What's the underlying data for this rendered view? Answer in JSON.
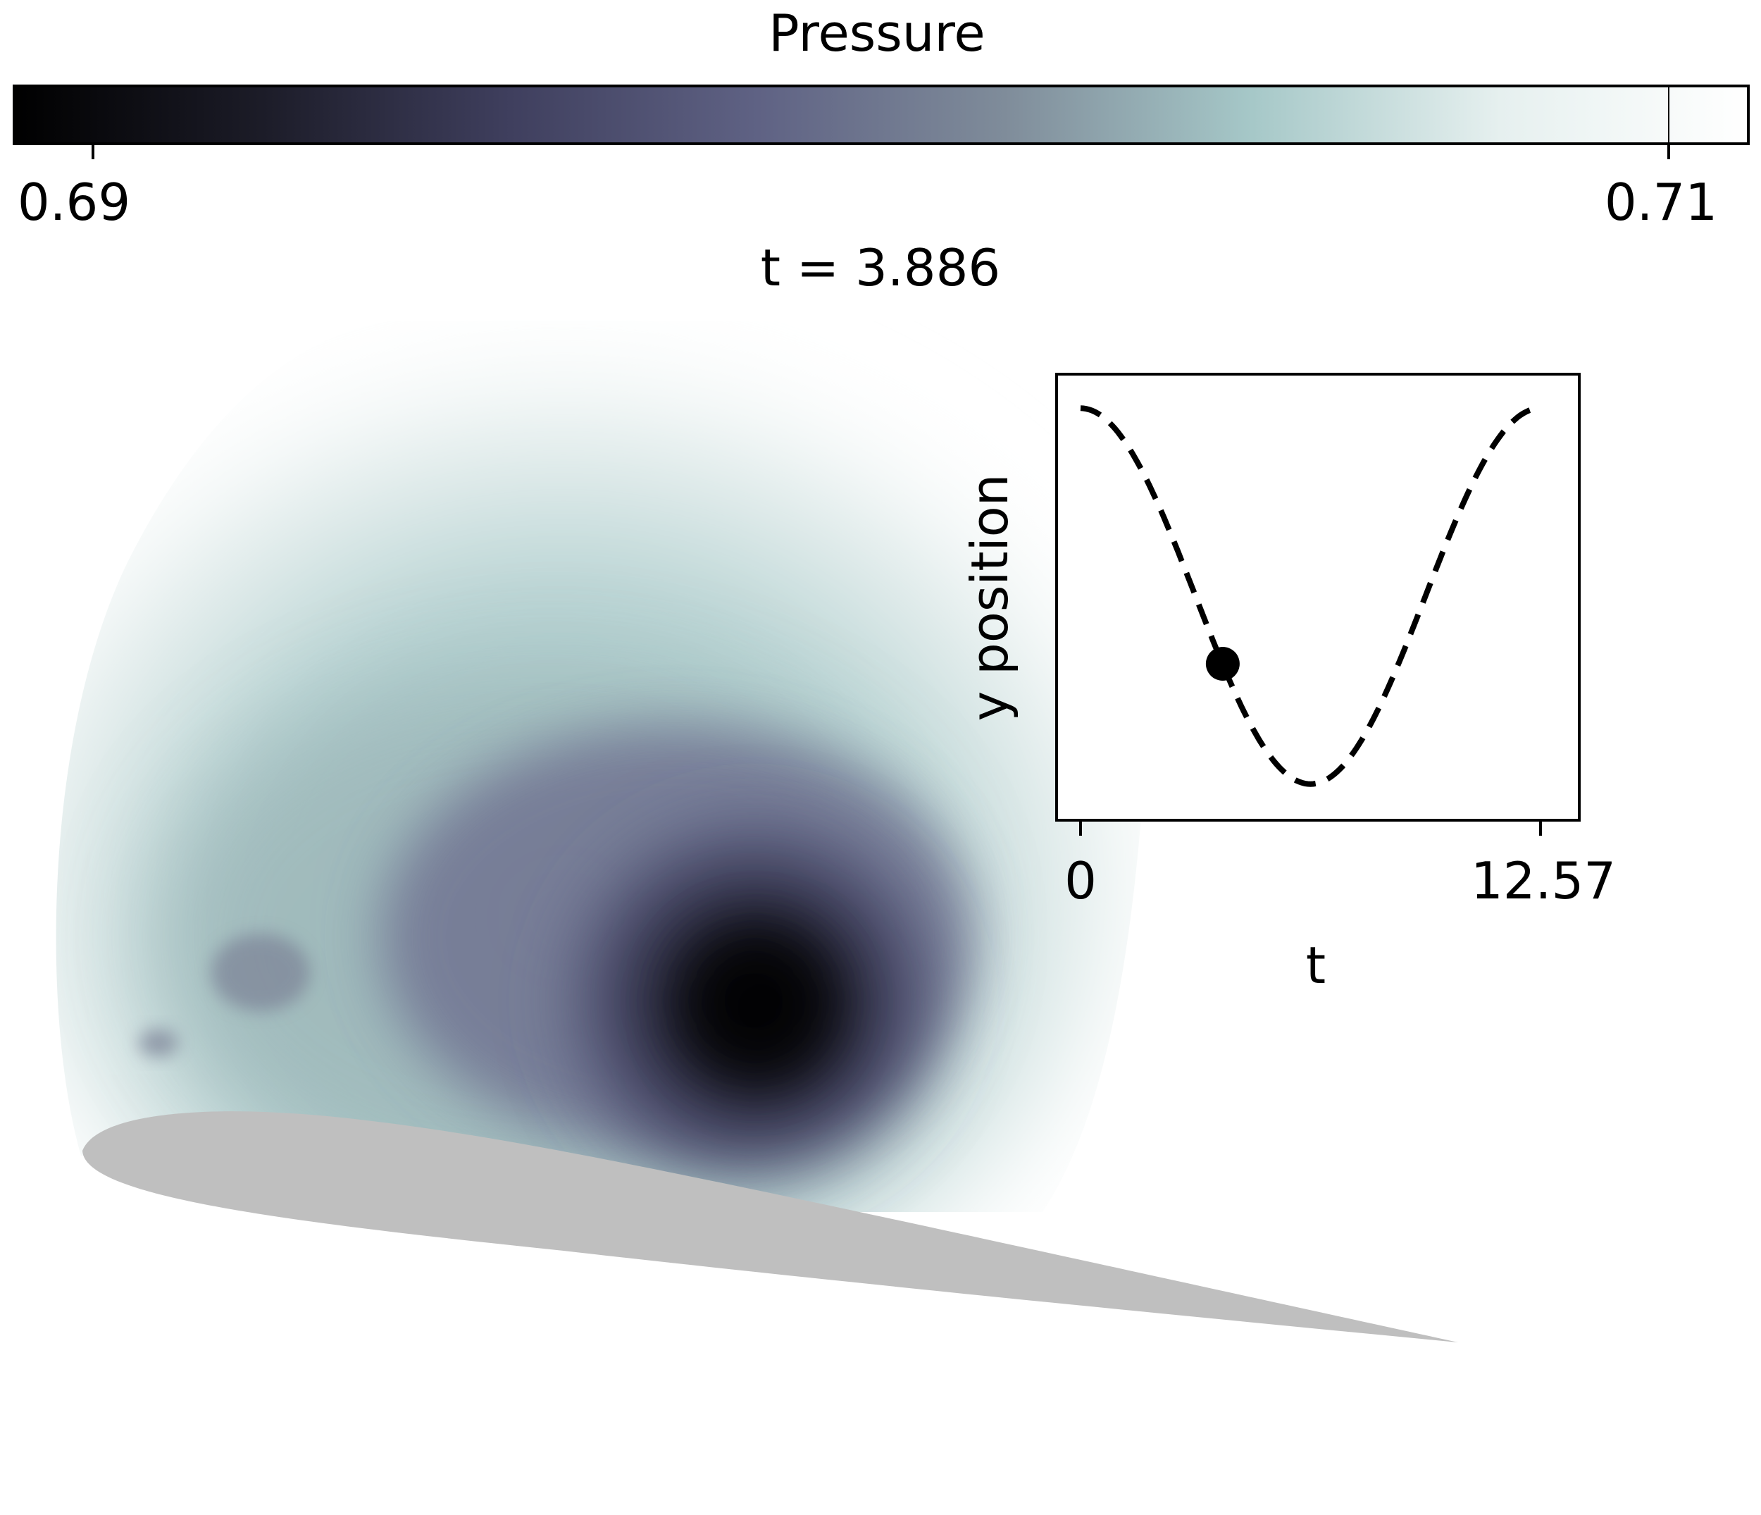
{
  "colorbar": {
    "title": "Pressure",
    "min_label": "0.69",
    "max_label": "0.71",
    "colormap": [
      "#000000",
      "#1c1c28",
      "#3f3f5e",
      "#5f6284",
      "#7f8c9a",
      "#a6c8c8",
      "#e6f0ef",
      "#ffffff"
    ]
  },
  "frame": {
    "title": "t = 3.886"
  },
  "field": {
    "airfoil_color": "#bfbfbf"
  },
  "inset": {
    "xlabel": "t",
    "ylabel": "y position",
    "xtick_labels": [
      "0",
      "12.57"
    ]
  },
  "chart_data": [
    {
      "type": "heatmap",
      "title": "Pressure",
      "colorbar_range": [
        0.69,
        0.71
      ],
      "colorbar_ticks": [
        "0.69",
        "0.71"
      ],
      "subtitle": "t = 3.886",
      "note_shape": "low-pressure vortex above airfoil surface"
    },
    {
      "type": "line",
      "xlabel": "t",
      "ylabel": "y position",
      "xlim": [
        0,
        12.57
      ],
      "ylim": [
        -1.08,
        1.08
      ],
      "xticks": [
        0,
        12.57
      ],
      "line_style": "dashed",
      "series": [
        {
          "function": "cos(t/2)",
          "x": [
            0,
            0.63,
            1.26,
            1.89,
            2.51,
            3.14,
            3.77,
            4.4,
            5.03,
            5.65,
            6.28,
            6.91,
            7.54,
            8.17,
            8.8,
            9.42,
            10.05,
            10.68,
            11.31,
            11.94,
            12.57
          ],
          "y": [
            1.0,
            0.95,
            0.81,
            0.59,
            0.31,
            0.0,
            -0.31,
            -0.59,
            -0.81,
            -0.95,
            -1.0,
            -0.95,
            -0.81,
            -0.59,
            -0.31,
            0.0,
            0.31,
            0.59,
            0.81,
            0.95,
            1.0
          ]
        }
      ],
      "marker": {
        "x": 3.886,
        "y": -0.36
      }
    }
  ]
}
